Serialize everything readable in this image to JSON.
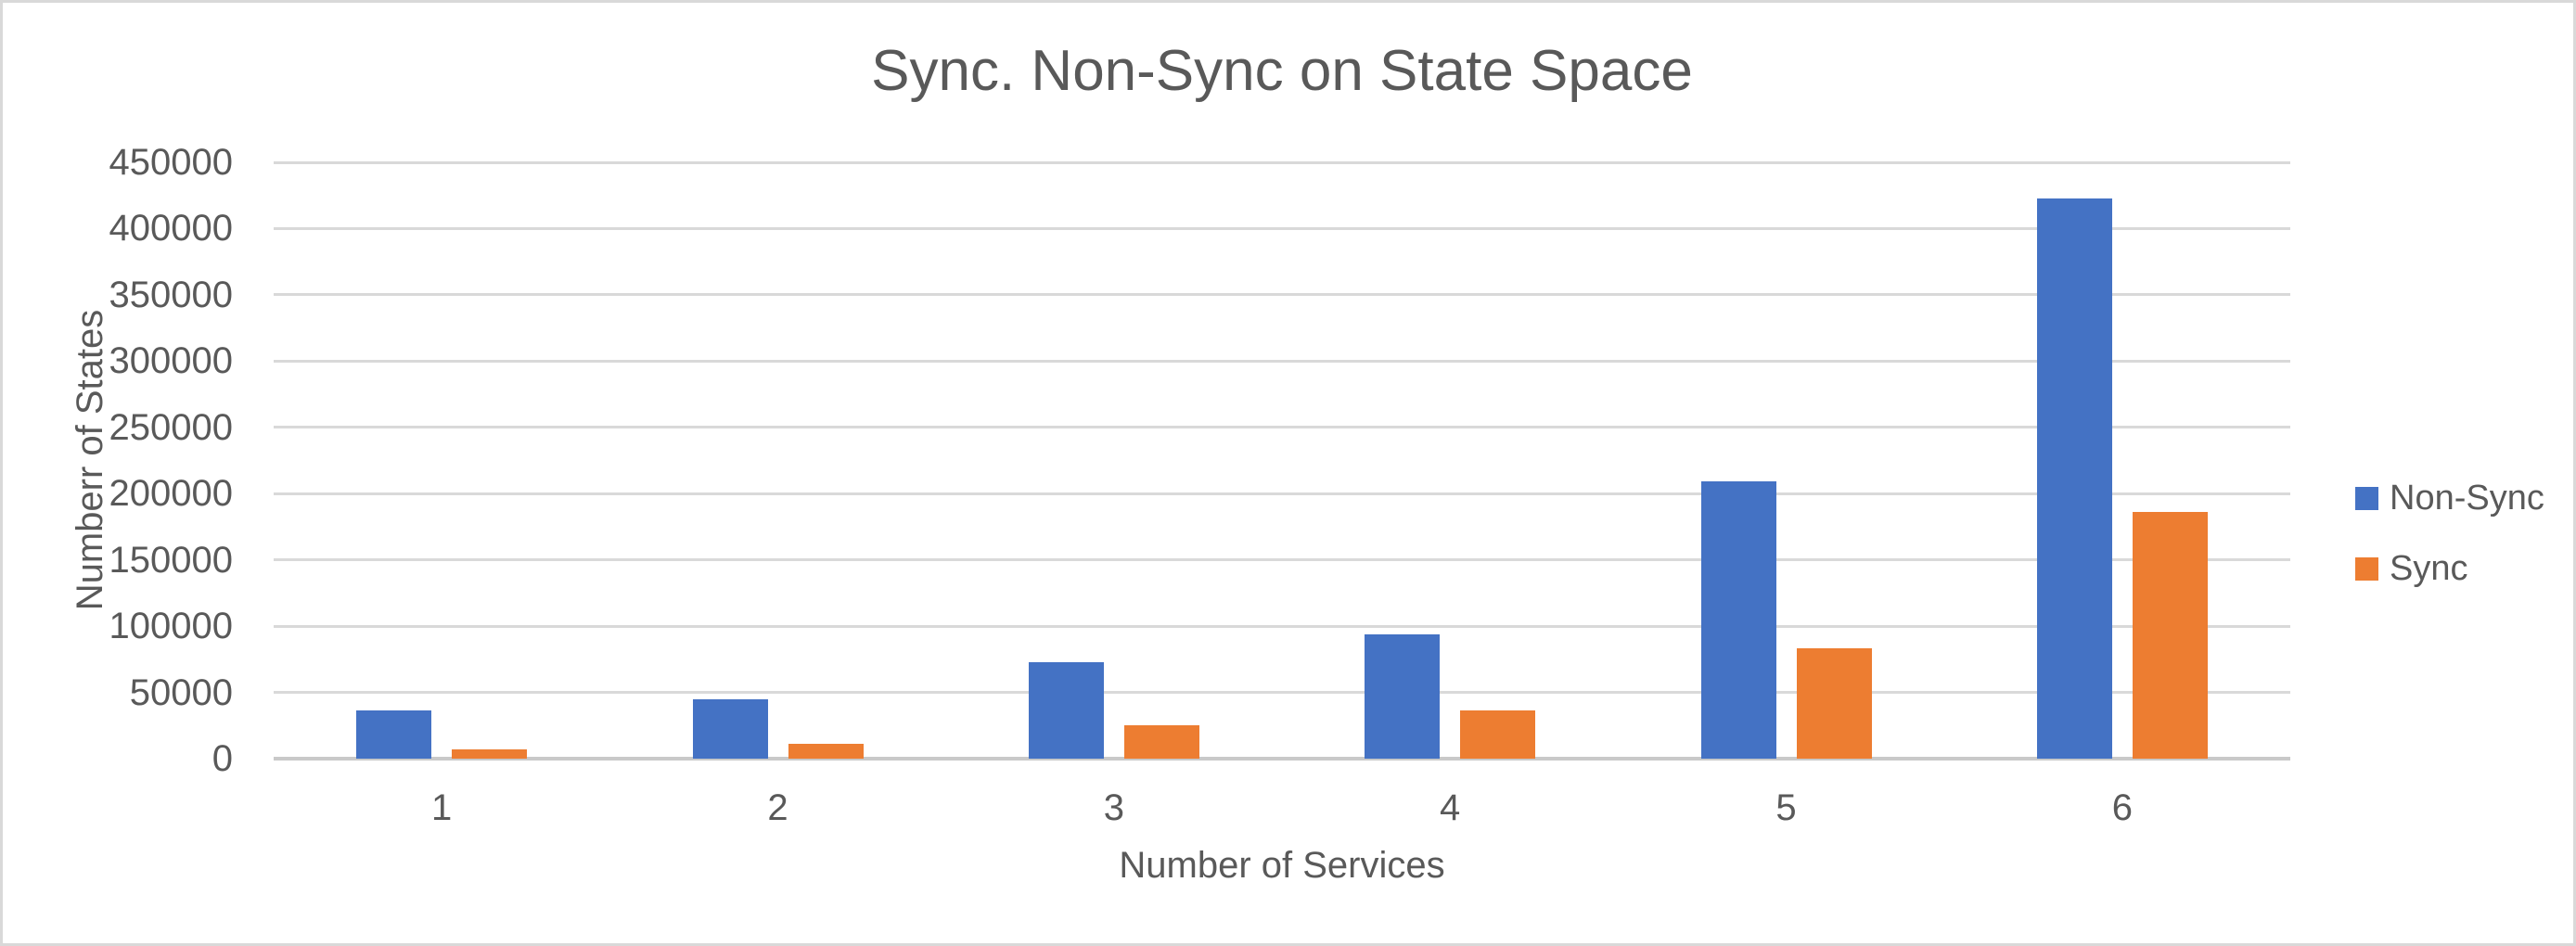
{
  "frame": {
    "background_color": "#ffffff",
    "border_color": "#d9d9d9"
  },
  "chart_data": {
    "type": "bar",
    "title": "Sync. Non-Sync on State Space",
    "xlabel": "Number of Services",
    "ylabel": "Numberr of States",
    "categories": [
      "1",
      "2",
      "3",
      "4",
      "5",
      "6"
    ],
    "series": [
      {
        "name": "Non-Sync",
        "color": "#4472c4",
        "values": [
          36500,
          45000,
          72500,
          93500,
          209000,
          423000
        ]
      },
      {
        "name": "Sync",
        "color": "#ed7d31",
        "values": [
          6700,
          11500,
          25000,
          36500,
          83000,
          186000
        ]
      }
    ],
    "ylim": [
      0,
      450000
    ],
    "ytick_step": 50000,
    "ytick_labels": [
      "0",
      "50000",
      "100000",
      "150000",
      "200000",
      "250000",
      "300000",
      "350000",
      "400000",
      "450000"
    ],
    "grid": true,
    "legend_position": "right",
    "legend_entries": [
      "Non-Sync",
      "Sync"
    ],
    "text_color": "#595959",
    "gridline_color": "#d9d9d9",
    "axis_line_color": "#c9c9c9"
  }
}
